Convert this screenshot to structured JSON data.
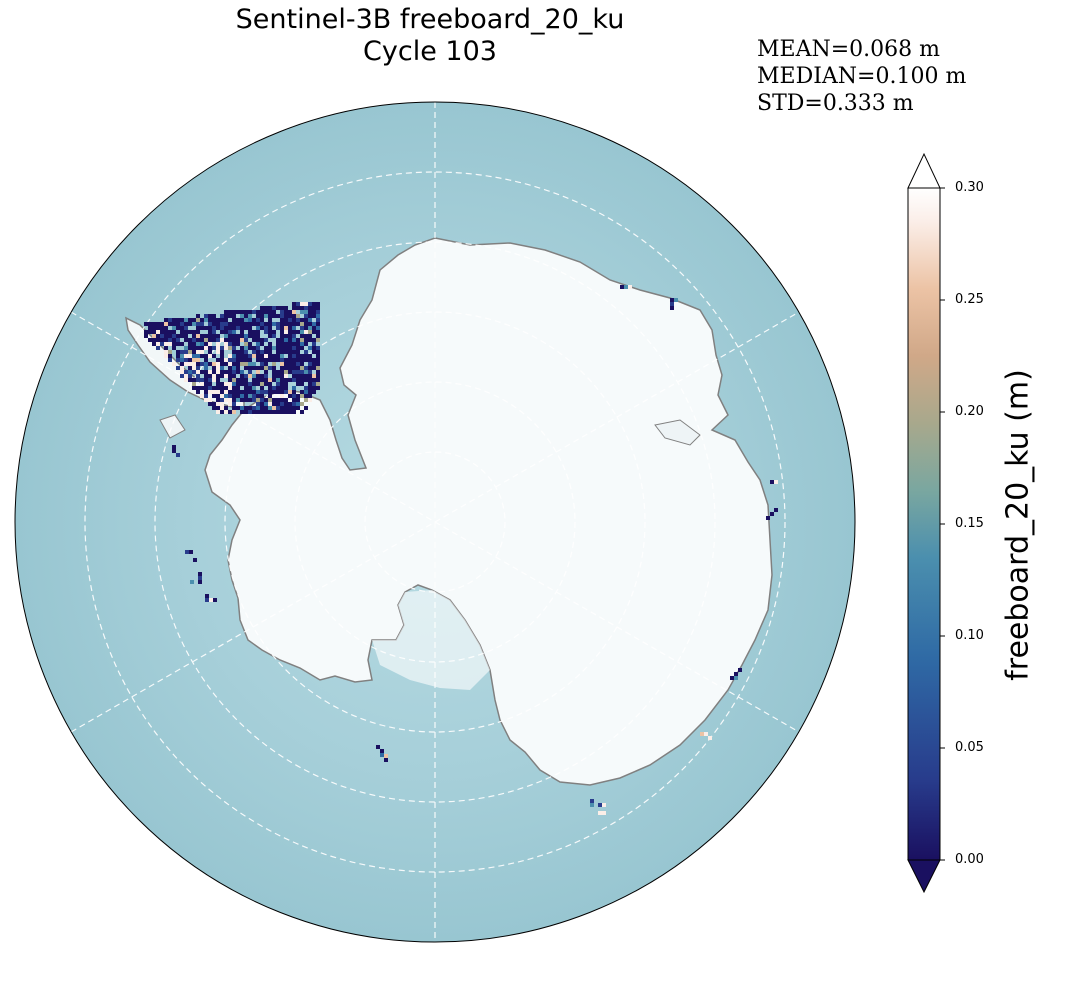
{
  "title": {
    "line1": "Sentinel-3B freeboard_20_ku",
    "line2": "Cycle 103"
  },
  "stats": {
    "mean": "MEAN=0.068 m",
    "median": "MEDIAN=0.100 m",
    "std": "STD=0.333 m"
  },
  "colorbar": {
    "label": "freeboard_20_ku (m)",
    "ticks": [
      "0.00",
      "0.05",
      "0.10",
      "0.15",
      "0.20",
      "0.25",
      "0.30"
    ],
    "range": [
      0.0,
      0.3
    ],
    "extend": "both",
    "colormap": [
      "#1a1060",
      "#283c8c",
      "#2f6aa5",
      "#4b8fae",
      "#7aa7a0",
      "#a8a88c",
      "#d0a888",
      "#ecc3a5",
      "#fbeee8",
      "#ffffff"
    ]
  },
  "map": {
    "projection": "south-polar-stereographic",
    "ocean_color": "#a8cdd8",
    "land_color": "#f5f9fa",
    "coastline_color": "#808080",
    "gridlines": "dashed-white"
  }
}
